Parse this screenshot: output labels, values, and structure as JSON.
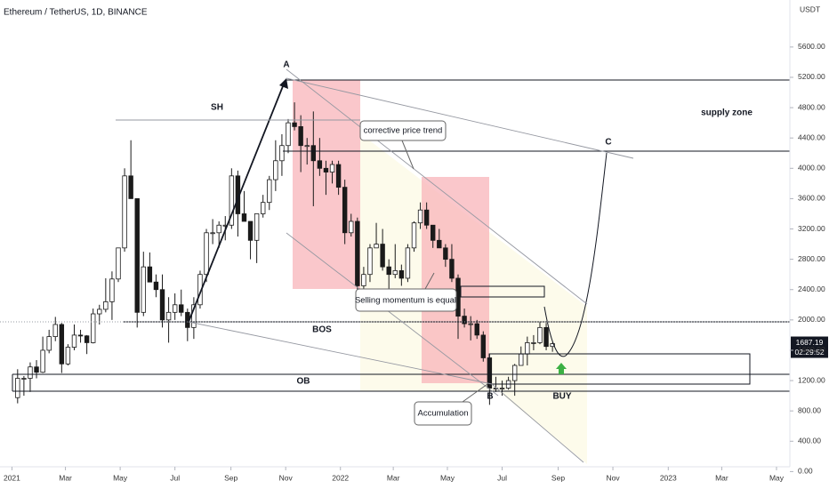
{
  "chart_data": {
    "type": "candlestick",
    "title": "Ethereum / TetherUS, 1D, BINANCE",
    "y_axis_label": "USDT",
    "last_price": 1687.19,
    "last_price_label": "1687.19",
    "countdown": "02:29:52",
    "up_color": "#ffffff",
    "down_color": "#1a1a1a",
    "outline_color": "#1a1a1a",
    "categories": [
      null,
      null,
      null,
      null,
      null,
      null,
      null,
      null,
      null,
      null,
      null,
      null,
      null,
      null,
      null,
      null,
      null,
      null,
      null,
      null,
      null,
      null,
      null,
      null,
      null,
      null,
      null,
      null,
      null,
      null,
      null,
      null,
      null,
      null,
      null,
      null,
      null,
      null,
      null,
      null,
      null,
      null,
      null,
      null,
      null,
      null,
      null,
      null,
      null,
      null,
      null,
      null,
      null,
      null,
      null,
      null,
      null,
      null,
      null,
      null,
      null,
      null,
      null,
      null,
      null,
      null,
      null,
      null,
      null,
      null,
      null,
      null,
      null,
      null,
      null,
      null,
      null,
      null,
      null,
      null,
      null,
      null,
      null,
      null,
      null,
      null
    ],
    "ohlc": [
      [
        975,
        1350,
        900,
        1230
      ],
      [
        1230,
        1260,
        1000,
        1230
      ],
      [
        1230,
        1440,
        1050,
        1380
      ],
      [
        1380,
        1470,
        1230,
        1310
      ],
      [
        1310,
        1780,
        1300,
        1600
      ],
      [
        1600,
        1870,
        1560,
        1780
      ],
      [
        1780,
        2040,
        1720,
        1940
      ],
      [
        1940,
        1960,
        1300,
        1420
      ],
      [
        1420,
        1680,
        1400,
        1640
      ],
      [
        1640,
        1940,
        1600,
        1800
      ],
      [
        1800,
        1870,
        1700,
        1790
      ],
      [
        1790,
        1800,
        1550,
        1700
      ],
      [
        1700,
        2150,
        1690,
        2080
      ],
      [
        2080,
        2200,
        1940,
        2140
      ],
      [
        2140,
        2550,
        2100,
        2240
      ],
      [
        2240,
        2640,
        2000,
        2540
      ],
      [
        2540,
        2950,
        2500,
        2950
      ],
      [
        2950,
        4000,
        2900,
        3900
      ],
      [
        3900,
        4370,
        3600,
        3600
      ],
      [
        3600,
        3600,
        1900,
        2100
      ],
      [
        2100,
        2900,
        2050,
        2700
      ],
      [
        2700,
        2890,
        2500,
        2500
      ],
      [
        2500,
        2600,
        2300,
        2400
      ],
      [
        2400,
        2600,
        1900,
        2000
      ],
      [
        2000,
        2300,
        1700,
        2100
      ],
      [
        2100,
        2350,
        2000,
        2200
      ],
      [
        2200,
        2400,
        2050,
        2100
      ],
      [
        2100,
        2150,
        1720,
        1900
      ],
      [
        1900,
        2300,
        1750,
        2200
      ],
      [
        2200,
        2650,
        2150,
        2600
      ],
      [
        2600,
        3200,
        2500,
        3150
      ],
      [
        3150,
        3330,
        3000,
        3150
      ],
      [
        3150,
        3300,
        2950,
        3250
      ],
      [
        3250,
        3370,
        3050,
        3250
      ],
      [
        3250,
        4000,
        3200,
        3900
      ],
      [
        3900,
        3970,
        3100,
        3400
      ],
      [
        3400,
        3700,
        3300,
        3300
      ],
      [
        3300,
        3300,
        2800,
        3050
      ],
      [
        3050,
        3400,
        2750,
        3400
      ],
      [
        3400,
        3650,
        3350,
        3550
      ],
      [
        3550,
        3900,
        3450,
        3850
      ],
      [
        3850,
        4370,
        3700,
        4100
      ],
      [
        4100,
        4450,
        3900,
        4300
      ],
      [
        4300,
        4650,
        4200,
        4600
      ],
      [
        4600,
        4870,
        4500,
        4550
      ],
      [
        4550,
        4700,
        3950,
        4300
      ],
      [
        4300,
        4400,
        4050,
        4300
      ],
      [
        4300,
        4750,
        3500,
        4100
      ],
      [
        4100,
        4400,
        3900,
        4000
      ],
      [
        4000,
        4100,
        3650,
        3950
      ],
      [
        3950,
        4100,
        3800,
        4050
      ],
      [
        4050,
        4100,
        3650,
        3750
      ],
      [
        3750,
        3850,
        3000,
        3150
      ],
      [
        3150,
        3400,
        3100,
        3300
      ],
      [
        3300,
        3350,
        2400,
        2450
      ],
      [
        2450,
        2700,
        2200,
        2600
      ],
      [
        2600,
        3000,
        2500,
        2950
      ],
      [
        2950,
        3280,
        2950,
        3000
      ],
      [
        3000,
        3200,
        2650,
        2700
      ],
      [
        2700,
        2800,
        2300,
        2600
      ],
      [
        2600,
        3000,
        2550,
        2650
      ],
      [
        2650,
        2730,
        2450,
        2550
      ],
      [
        2550,
        3000,
        2500,
        2950
      ],
      [
        2950,
        3300,
        2900,
        3280
      ],
      [
        3280,
        3550,
        3200,
        3450
      ],
      [
        3450,
        3550,
        3200,
        3250
      ],
      [
        3250,
        3250,
        2950,
        3050
      ],
      [
        3050,
        3200,
        2950,
        2950
      ],
      [
        2950,
        3000,
        2700,
        2800
      ],
      [
        2800,
        3000,
        2500,
        2550
      ],
      [
        2550,
        2600,
        1750,
        2050
      ],
      [
        2050,
        2150,
        1900,
        1950
      ],
      [
        1950,
        2050,
        1730,
        1950
      ],
      [
        1950,
        2000,
        1750,
        1800
      ],
      [
        1800,
        1850,
        1450,
        1500
      ],
      [
        1500,
        1550,
        880,
        1100
      ],
      [
        1100,
        1250,
        1050,
        1100
      ],
      [
        1100,
        1200,
        1000,
        1100
      ],
      [
        1100,
        1250,
        1080,
        1200
      ],
      [
        1200,
        1420,
        1000,
        1400
      ],
      [
        1400,
        1650,
        1400,
        1550
      ],
      [
        1550,
        1780,
        1400,
        1700
      ],
      [
        1700,
        1800,
        1600,
        1700
      ],
      [
        1700,
        1980,
        1680,
        1900
      ],
      [
        1900,
        1960,
        1600,
        1650
      ],
      [
        1650,
        1700,
        1580,
        1687.19
      ]
    ],
    "xlim": [
      -2.8,
      122.3
    ],
    "xticks": [
      {
        "value": -0.9,
        "label": "2021"
      },
      {
        "value": 7.6,
        "label": "Mar"
      },
      {
        "value": 16.3,
        "label": "May"
      },
      {
        "value": 25.0,
        "label": "Jul"
      },
      {
        "value": 33.9,
        "label": "Sep"
      },
      {
        "value": 42.6,
        "label": "Nov"
      },
      {
        "value": 51.3,
        "label": "2022"
      },
      {
        "value": 59.7,
        "label": "Mar"
      },
      {
        "value": 68.3,
        "label": "May"
      },
      {
        "value": 77.0,
        "label": "Jul"
      },
      {
        "value": 85.9,
        "label": "Sep"
      },
      {
        "value": 94.6,
        "label": "Nov"
      },
      {
        "value": 103.4,
        "label": "2023"
      },
      {
        "value": 111.9,
        "label": "Mar"
      },
      {
        "value": 120.6,
        "label": "May"
      }
    ],
    "ylim": [
      -230,
      6220
    ],
    "yticks": [
      {
        "value": 0,
        "label": "0.00"
      },
      {
        "value": 400,
        "label": "400.00"
      },
      {
        "value": 800,
        "label": "800.00"
      },
      {
        "value": 1200,
        "label": "1200.00"
      },
      {
        "value": 1600,
        "label": "1600.00"
      },
      {
        "value": 2000,
        "label": "2000.00"
      },
      {
        "value": 2400,
        "label": "2400.00"
      },
      {
        "value": 2800,
        "label": "2800.00"
      },
      {
        "value": 3200,
        "label": "3200.00"
      },
      {
        "value": 3600,
        "label": "3600.00"
      },
      {
        "value": 4000,
        "label": "4000.00"
      },
      {
        "value": 4400,
        "label": "4400.00"
      },
      {
        "value": 4800,
        "label": "4800.00"
      },
      {
        "value": 5200,
        "label": "5200.00"
      },
      {
        "value": 5600,
        "label": "5600.00"
      }
    ],
    "annotations": {
      "a": "A",
      "b": "B",
      "c": "C",
      "sh": "SH",
      "bos": "BOS",
      "ob": "OB",
      "buy": "BUY",
      "supply": "supply zone",
      "corrective": "corrective price trend",
      "selling": "Selling momentum is equal",
      "accumulation": "Accumulation"
    }
  }
}
